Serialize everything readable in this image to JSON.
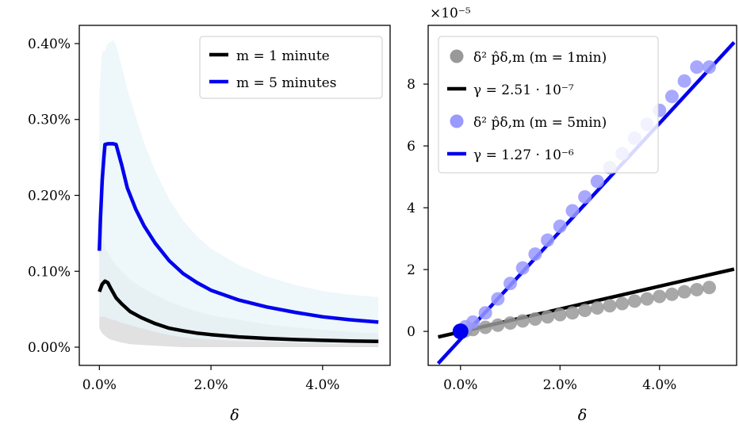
{
  "chart_data": [
    {
      "type": "line",
      "xlabel": "δ",
      "ylabel": "",
      "xlim": [
        -0.0036,
        0.0521
      ],
      "ylim": [
        -0.00024,
        0.00424
      ],
      "x_ticks": [
        0.0,
        0.02,
        0.04
      ],
      "x_tick_labels": [
        "0.0%",
        "2.0%",
        "4.0%"
      ],
      "y_ticks": [
        0.0,
        0.001,
        0.002,
        0.003,
        0.004
      ],
      "y_tick_labels": [
        "0.00%",
        "0.10%",
        "0.20%",
        "0.30%",
        "0.40%"
      ],
      "legend_position": "top-right",
      "series": [
        {
          "name": "m = 1 minute",
          "color": "#000000",
          "x": [
            0.0,
            0.0005,
            0.001,
            0.0015,
            0.002,
            0.003,
            0.004,
            0.0055,
            0.0075,
            0.01,
            0.0125,
            0.015,
            0.0175,
            0.02,
            0.025,
            0.03,
            0.035,
            0.04,
            0.045,
            0.05
          ],
          "y": [
            0.00073,
            0.00083,
            0.00087,
            0.00085,
            0.00078,
            0.00065,
            0.00057,
            0.00047,
            0.00039,
            0.00031,
            0.00025,
            0.000215,
            0.000185,
            0.000165,
            0.000135,
            0.000115,
            0.0001,
            9e-05,
            8.2e-05,
            7.5e-05
          ],
          "band_upper": [
            0.0014,
            0.00155,
            0.0013,
            0.00125,
            0.00118,
            0.00108,
            0.001,
            0.00089,
            0.00079,
            0.00069,
            0.0006,
            0.00053,
            0.00047,
            0.00042,
            0.00036,
            0.0003,
            0.00026,
            0.00023,
            0.0002,
            0.00018
          ],
          "band_lower": [
            0.00025,
            0.00018,
            0.00015,
            0.00012,
            0.0001,
            8e-05,
            6e-05,
            4e-05,
            3e-05,
            2e-05,
            1e-05,
            0.0,
            0.0,
            0.0,
            0.0,
            0.0,
            0.0,
            0.0,
            0.0,
            0.0
          ]
        },
        {
          "name": "m = 5 minutes",
          "color": "#0000ee",
          "x": [
            0.0,
            0.0002,
            0.0005,
            0.0008,
            0.001,
            0.0015,
            0.002,
            0.0025,
            0.003,
            0.004,
            0.005,
            0.0065,
            0.008,
            0.01,
            0.0125,
            0.015,
            0.0175,
            0.02,
            0.025,
            0.03,
            0.035,
            0.04,
            0.045,
            0.05
          ],
          "y": [
            0.00127,
            0.0017,
            0.0022,
            0.0025,
            0.00267,
            0.00268,
            0.00268,
            0.00268,
            0.00267,
            0.0024,
            0.0021,
            0.00182,
            0.0016,
            0.00137,
            0.00114,
            0.00097,
            0.00085,
            0.00075,
            0.00062,
            0.00053,
            0.00046,
            0.0004,
            0.00036,
            0.00033
          ],
          "band_upper": [
            0.0033,
            0.0036,
            0.0039,
            0.0039,
            0.0039,
            0.004,
            0.00402,
            0.00405,
            0.00398,
            0.0037,
            0.0034,
            0.00304,
            0.0027,
            0.00232,
            0.00195,
            0.00167,
            0.00146,
            0.0013,
            0.00108,
            0.00093,
            0.00082,
            0.00074,
            0.00069,
            0.00066
          ],
          "band_lower": [
            0.0004,
            0.0004,
            0.0004,
            0.0004,
            0.0004,
            0.00038,
            0.00037,
            0.00036,
            0.00035,
            0.00032,
            0.0003,
            0.00027,
            0.00024,
            0.0002,
            0.00016,
            0.00013,
            0.00011,
            0.0001,
            8e-05,
            7e-05,
            6e-05,
            5e-05,
            4e-05,
            4e-05
          ]
        }
      ],
      "band_colors": [
        "#dcdcdc",
        "#e8f4f8"
      ]
    },
    {
      "type": "scatter",
      "xlabel": "δ",
      "ylabel": "",
      "y_scale_label": "×10⁻⁵",
      "xlim": [
        -0.0065,
        0.0555
      ],
      "ylim": [
        -1.1,
        9.9
      ],
      "x_ticks": [
        0.0,
        0.02,
        0.04
      ],
      "x_tick_labels": [
        "0.0%",
        "2.0%",
        "4.0%"
      ],
      "y_ticks": [
        0,
        2,
        4,
        6,
        8
      ],
      "y_tick_labels": [
        "0",
        "2",
        "4",
        "6",
        "8"
      ],
      "legend_position": "top-left",
      "legend": [
        {
          "label": "δ² p̂δ,m (m = 1min)",
          "kind": "marker",
          "color": "#999999"
        },
        {
          "label": "γ = 2.51 · 10⁻⁷",
          "kind": "line",
          "color": "#000000"
        },
        {
          "label": "δ² p̂δ,m (m = 5min)",
          "kind": "marker",
          "color": "#9999ff"
        },
        {
          "label": "γ = 1.27 · 10⁻⁶",
          "kind": "line",
          "color": "#0000ee"
        }
      ],
      "series": [
        {
          "name": "δ² p̂δ,m (m = 1min)",
          "color": "#999999",
          "x": [
            0.0,
            0.001,
            0.0025,
            0.005,
            0.0075,
            0.01,
            0.0125,
            0.015,
            0.0175,
            0.02,
            0.0225,
            0.025,
            0.0275,
            0.03,
            0.0325,
            0.035,
            0.0375,
            0.04,
            0.0425,
            0.045,
            0.0475,
            0.05
          ],
          "y": [
            0.0,
            0.02,
            0.06,
            0.13,
            0.2,
            0.27,
            0.34,
            0.4,
            0.47,
            0.54,
            0.6,
            0.68,
            0.76,
            0.83,
            0.9,
            0.98,
            1.05,
            1.13,
            1.2,
            1.28,
            1.35,
            1.42
          ]
        },
        {
          "name": "γ = 2.51 · 10⁻⁷",
          "color": "#000000",
          "line_x": [
            -0.0045,
            0.055
          ],
          "line_y": [
            -0.183,
            2.015
          ]
        },
        {
          "name": "δ² p̂δ,m (m = 5min)",
          "color": "#9999ff",
          "x": [
            0.0,
            0.001,
            0.0025,
            0.005,
            0.0075,
            0.01,
            0.0125,
            0.015,
            0.0175,
            0.02,
            0.0225,
            0.025,
            0.0275,
            0.03,
            0.0325,
            0.035,
            0.0375,
            0.04,
            0.0425,
            0.045,
            0.0475,
            0.05
          ],
          "y": [
            0.0,
            0.15,
            0.3,
            0.6,
            1.05,
            1.55,
            2.05,
            2.5,
            2.95,
            3.4,
            3.9,
            4.35,
            4.85,
            5.3,
            5.75,
            6.25,
            6.7,
            7.15,
            7.6,
            8.1,
            8.55,
            8.55
          ]
        },
        {
          "name": "γ = 1.27 · 10⁻⁶",
          "color": "#0000ee",
          "line_x": [
            -0.0045,
            0.055
          ],
          "line_y": [
            -1.04,
            9.35
          ]
        }
      ]
    }
  ]
}
